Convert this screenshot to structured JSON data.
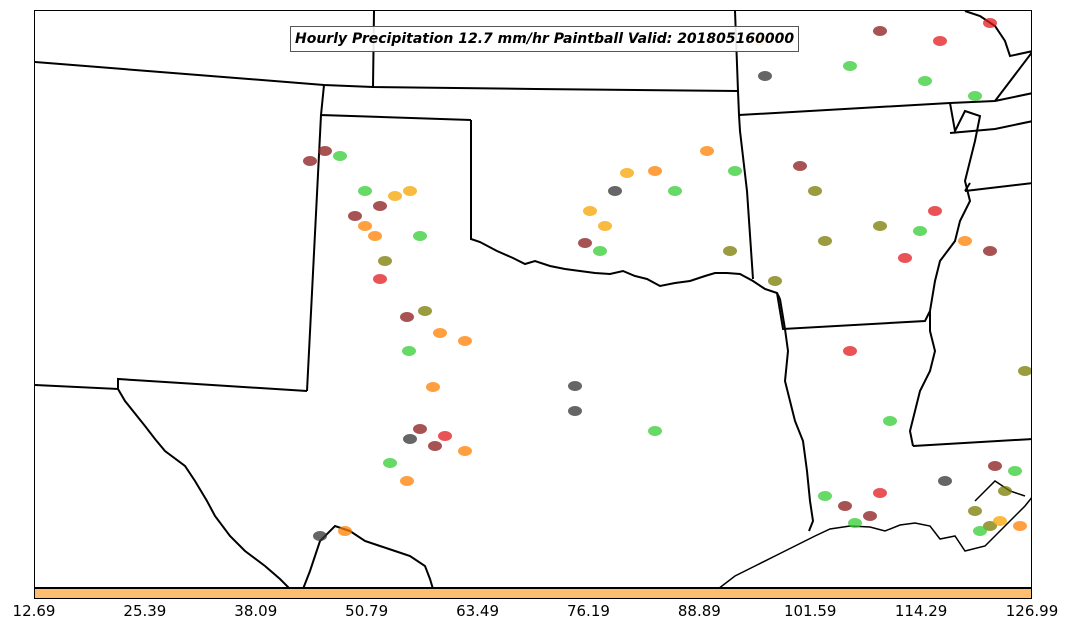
{
  "title": "Hourly Precipitation 12.7 mm/hr Paintball Valid: 201805160000",
  "colorbar": {
    "color": "#fdbf6f",
    "ticks": [
      "12.69",
      "25.39",
      "38.09",
      "50.79",
      "63.49",
      "76.19",
      "88.89",
      "101.59",
      "114.29",
      "126.99"
    ]
  },
  "legend_colors": {
    "red": "#e31a1c",
    "orange": "#ff7f00",
    "green": "#33cc33",
    "olive": "#7a7a00",
    "brown": "#8b1a1a",
    "gray": "#333333",
    "yellow_orange": "#f5a400"
  },
  "map": {
    "projection": "lambert-conformal",
    "region": "southern-plains-and-gulf-coast",
    "boundaries": "state-lines-and-coastline"
  }
}
